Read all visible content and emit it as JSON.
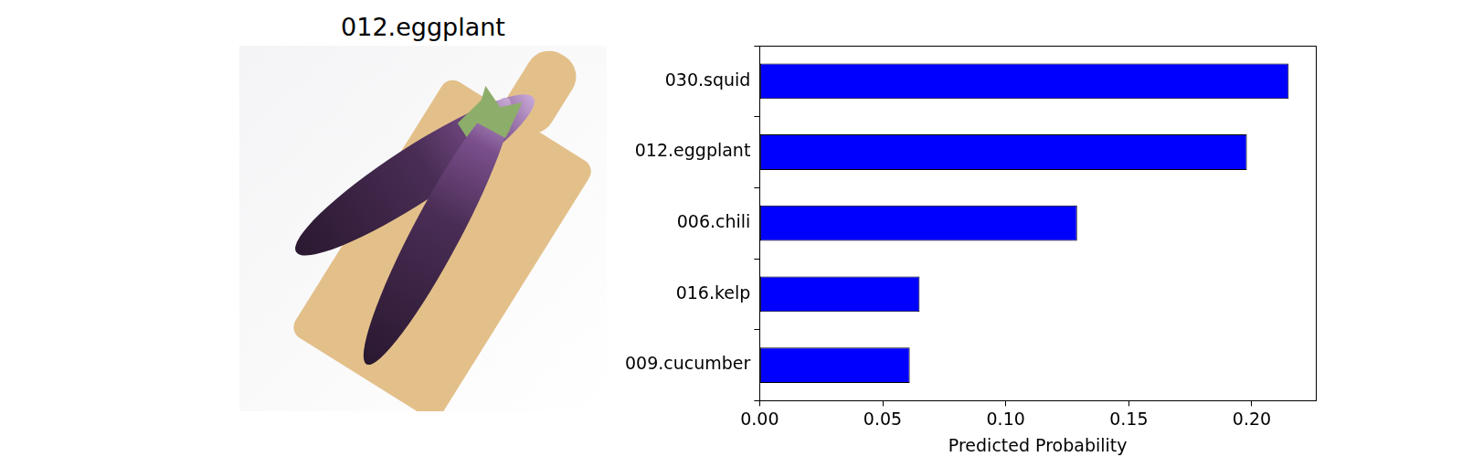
{
  "image": {
    "title": "012.eggplant"
  },
  "chart_data": {
    "type": "bar",
    "orientation": "horizontal",
    "categories": [
      "030.squid",
      "012.eggplant",
      "006.chili",
      "016.kelp",
      "009.cucumber"
    ],
    "values": [
      0.215,
      0.198,
      0.129,
      0.065,
      0.061
    ],
    "color": "#0000ff",
    "x_label": "Predicted Probability",
    "xlim": [
      0,
      0.226
    ],
    "xticks": [
      {
        "value": 0,
        "label": "0.00"
      },
      {
        "value": 0.05,
        "label": "0.05"
      },
      {
        "value": 0.1,
        "label": "0.10"
      },
      {
        "value": 0.15,
        "label": "0.15"
      },
      {
        "value": 0.2,
        "label": "0.20"
      }
    ],
    "grid": false
  }
}
